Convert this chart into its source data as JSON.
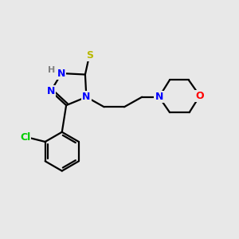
{
  "bg_color": "#e8e8e8",
  "atom_colors": {
    "N": "#0000ff",
    "S": "#b8b800",
    "O": "#ff0000",
    "Cl": "#00cc00",
    "C": "#000000",
    "H": "#808080"
  },
  "lw": 1.6,
  "fs": 9
}
